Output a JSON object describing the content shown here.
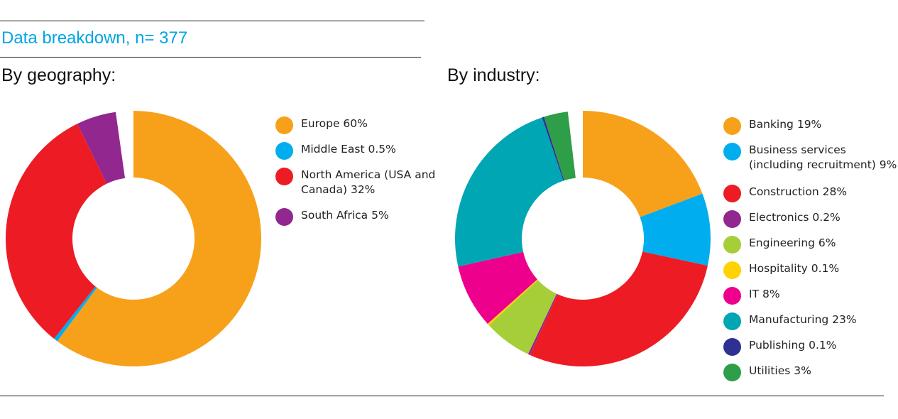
{
  "title": "Data breakdown, n= 377",
  "chart_data": [
    {
      "type": "pie",
      "title": "By geography:",
      "series": [
        {
          "label": "Europe 60%",
          "value": 60,
          "color": "#f7a11a"
        },
        {
          "label": "Middle East 0.5%",
          "value": 0.5,
          "color": "#00aeef"
        },
        {
          "label": "North America (USA and Canada) 32%",
          "value": 32,
          "color": "#ed1c24"
        },
        {
          "label": "South Africa 5%",
          "value": 5,
          "color": "#92278f"
        }
      ]
    },
    {
      "type": "pie",
      "title": "By industry:",
      "series": [
        {
          "label": "Banking 19%",
          "value": 19,
          "color": "#f7a11a"
        },
        {
          "label": "Business services (including recruitment) 9%",
          "value": 9,
          "color": "#00aeef"
        },
        {
          "label": "Construction 28%",
          "value": 28,
          "color": "#ed1c24"
        },
        {
          "label": "Electronics 0.2%",
          "value": 0.2,
          "color": "#92278f"
        },
        {
          "label": "Engineering 6%",
          "value": 6,
          "color": "#a6ce39"
        },
        {
          "label": "Hospitality 0.1%",
          "value": 0.1,
          "color": "#ffd200"
        },
        {
          "label": "IT 8%",
          "value": 8,
          "color": "#ec008c"
        },
        {
          "label": "Manufacturing 23%",
          "value": 23,
          "color": "#00a6b4"
        },
        {
          "label": "Publishing 0.1%",
          "value": 0.1,
          "color": "#2e3192"
        },
        {
          "label": "Utilities 3%",
          "value": 3,
          "color": "#2e9e48"
        }
      ]
    }
  ]
}
